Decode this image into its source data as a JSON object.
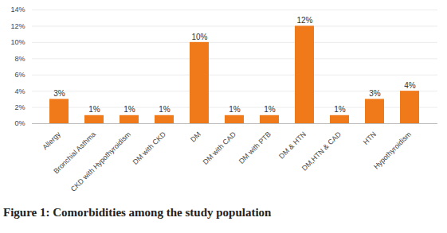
{
  "chart_data": {
    "type": "bar",
    "title": "Figure 1: Comorbidities among the study population",
    "categories": [
      "Allergy",
      "Bronchial Asthma",
      "CKD with Hypothyroidism",
      "DM with CKD",
      "DM",
      "DM with CAD",
      "DM with PTB",
      "DM & HTN",
      "DM,HTN & CAD",
      "HTN",
      "Hypothyroidism"
    ],
    "values": [
      3,
      1,
      1,
      1,
      10,
      1,
      1,
      12,
      1,
      3,
      4
    ],
    "value_labels": [
      "3%",
      "1%",
      "1%",
      "1%",
      "10%",
      "1%",
      "1%",
      "12%",
      "1%",
      "3%",
      "4%"
    ],
    "data_labels": true,
    "color": "#f07a1a",
    "ylim": [
      0,
      14
    ],
    "yticks": [
      {
        "value": 0,
        "label": "0%"
      },
      {
        "value": 2,
        "label": "2%"
      },
      {
        "value": 4,
        "label": "4%"
      },
      {
        "value": 6,
        "label": "6%"
      },
      {
        "value": 8,
        "label": "8%"
      },
      {
        "value": 10,
        "label": "10%"
      },
      {
        "value": 12,
        "label": "12%"
      },
      {
        "value": 14,
        "label": "14%"
      }
    ],
    "grid": true
  }
}
